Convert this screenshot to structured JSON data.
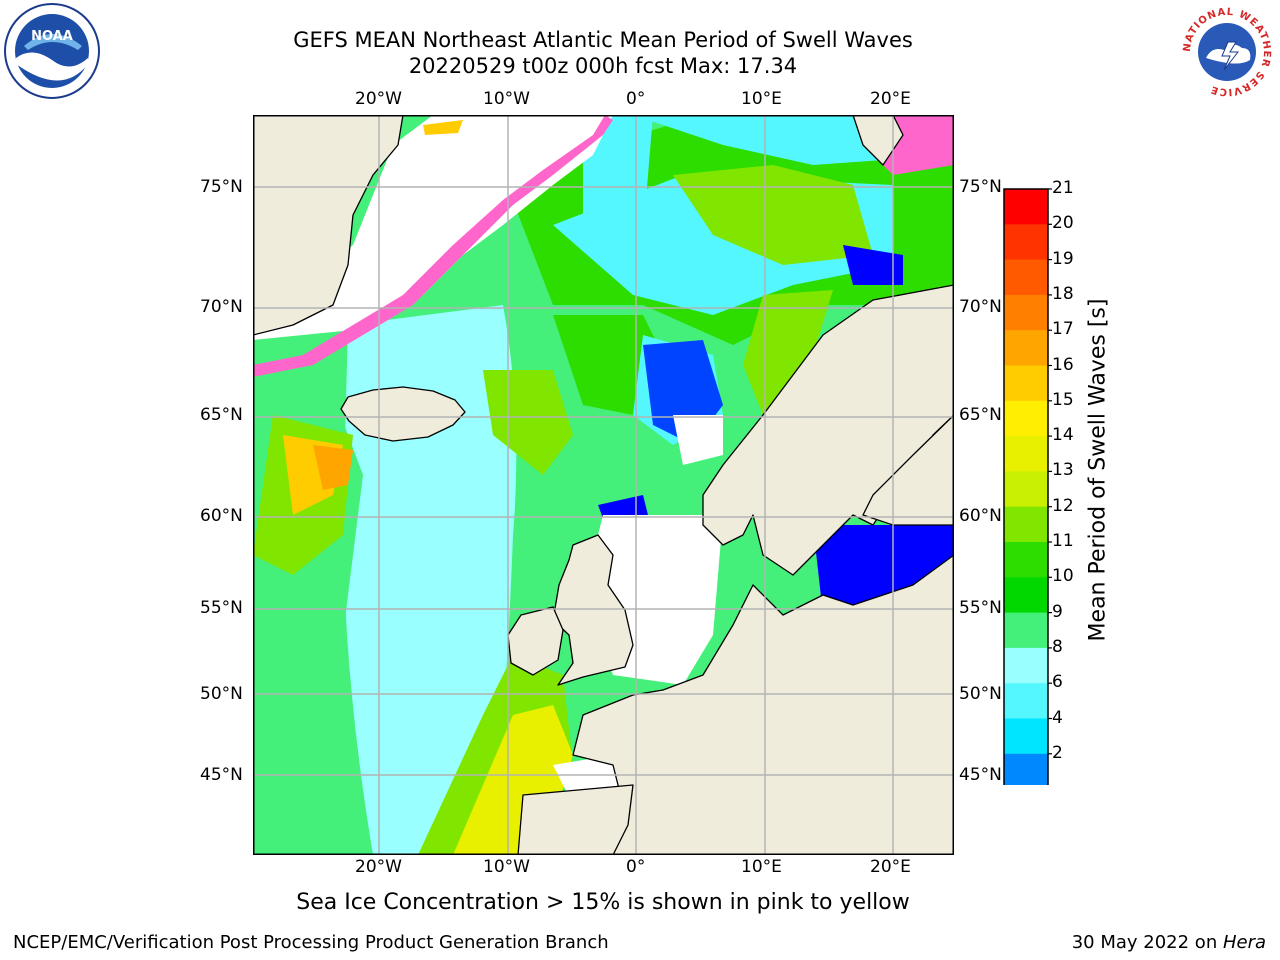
{
  "header": {
    "title": "GEFS MEAN Northeast Atlantic Mean Period of Swell Waves",
    "subtitle": "20220529 t00z 000h fcst   Max: 17.34"
  },
  "map": {
    "lon_labels_top": [
      "20°W",
      "10°W",
      "0°",
      "10°E",
      "20°E"
    ],
    "lon_labels_bottom": [
      "20°W",
      "10°W",
      "0°",
      "10°E",
      "20°E"
    ],
    "lat_labels_left": [
      "75°N",
      "70°N",
      "65°N",
      "60°N",
      "55°N",
      "50°N",
      "45°N"
    ],
    "lat_labels_right": [
      "75°N",
      "70°N",
      "65°N",
      "60°N",
      "55°N",
      "50°N",
      "45°N"
    ],
    "colors": {
      "land": "#efecdc",
      "grid": "#b3b3b3",
      "coast": "#000000"
    }
  },
  "colorbar": {
    "title": "Mean Period of Swell Waves [s]",
    "ticks": [
      "21",
      "20",
      "19",
      "18",
      "17",
      "16",
      "15",
      "14",
      "13",
      "12",
      "11",
      "10",
      "9",
      "8",
      "6",
      "4",
      "2"
    ],
    "colors": [
      "#fe0000",
      "#ff3300",
      "#ff5a00",
      "#ff8000",
      "#ffa500",
      "#ffcc00",
      "#ffee00",
      "#e8f000",
      "#c8f000",
      "#80e600",
      "#2ddd00",
      "#00d800",
      "#44f07a",
      "#99ffff",
      "#55f7ff",
      "#00e5ff",
      "#0088ff",
      "#0044ff"
    ],
    "underflow_color": "#0000ff"
  },
  "footer": {
    "note": "Sea Ice Concentration > 15% is shown in pink to yellow",
    "credit": "NCEP/EMC/Verification Post Processing Product Generation Branch",
    "date": "30 May 2022 on ",
    "host": "Hera"
  },
  "logos": {
    "noaa": "NOAA",
    "nws_ring": "NATIONAL WEATHER SERVICE"
  }
}
